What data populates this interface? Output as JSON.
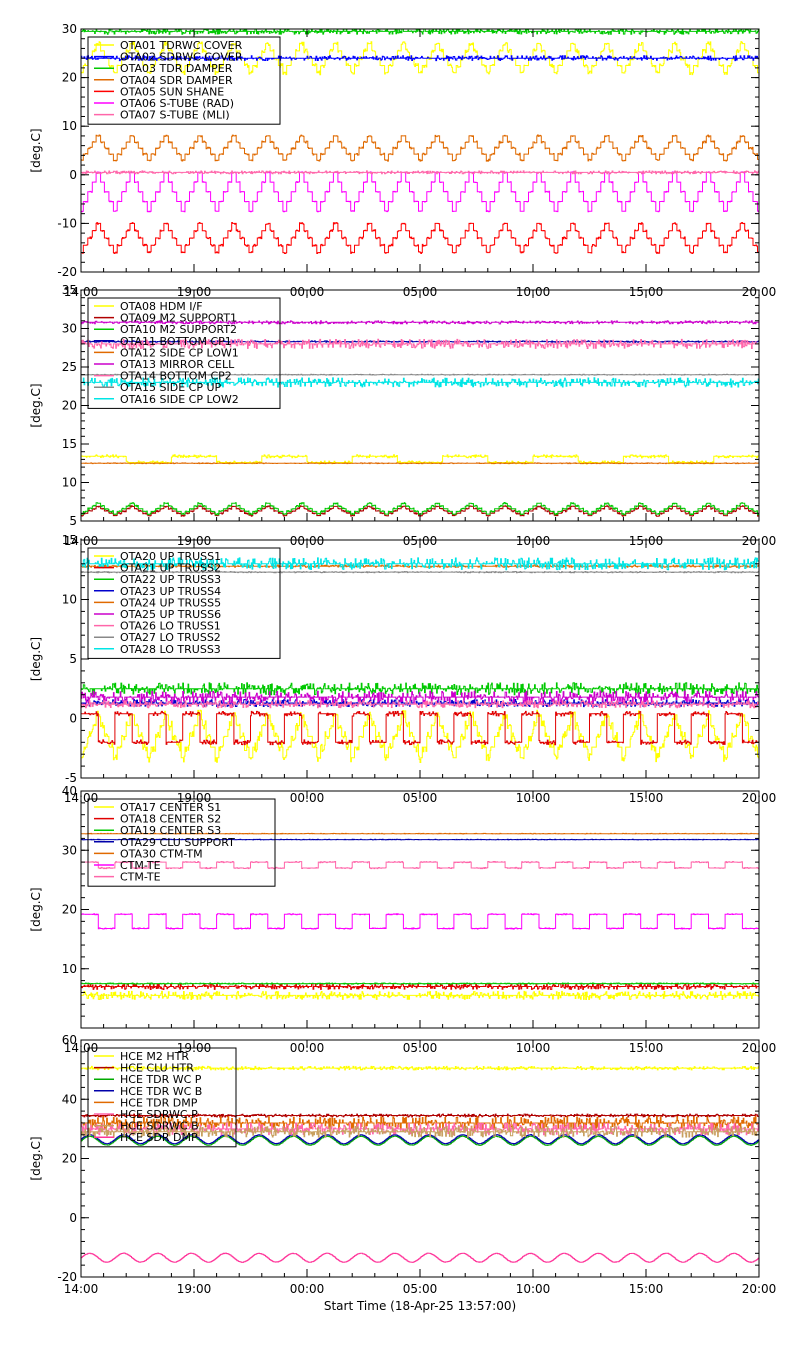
{
  "figure": {
    "x_tick_labels": [
      "14:00",
      "19:00",
      "00:00",
      "05:00",
      "10:00",
      "15:00",
      "20:00"
    ],
    "x_axis_label": "Start Time (18-Apr-25 13:57:00)"
  },
  "chart_data": [
    {
      "type": "line",
      "ylabel": "[deg.C]",
      "ylim": [
        -20,
        30
      ],
      "y_ticks": [
        -20,
        -10,
        0,
        10,
        20,
        30
      ],
      "xlim_hours": [
        0,
        30
      ],
      "legend_position": "top-left",
      "series": [
        {
          "name": "OTA01 TDRWC COVER",
          "color": "#ffff00",
          "kind": "sawtooth",
          "base": 24,
          "amp": 3,
          "period": 1.5,
          "noise": 0.4
        },
        {
          "name": "OTA02 SDRWC COVER",
          "color": "#0000ff",
          "kind": "const",
          "base": 24,
          "noise": 0.5
        },
        {
          "name": "OTA03 TDR DAMPER",
          "color": "#00c800",
          "kind": "const",
          "base": 29.5,
          "noise": 0.6
        },
        {
          "name": "OTA04 SDR DAMPER",
          "color": "#e06a00",
          "kind": "sawtooth",
          "base": 5.5,
          "amp": 2.5,
          "period": 1.5,
          "noise": 0.2
        },
        {
          "name": "OTA05 SUN SHANE",
          "color": "#ff0000",
          "kind": "sawtooth",
          "base": -13,
          "amp": 3,
          "period": 1.5,
          "noise": 0.2
        },
        {
          "name": "OTA06 S-TUBE (RAD)",
          "color": "#ff00ff",
          "kind": "sawtooth",
          "base": -3.5,
          "amp": 4,
          "period": 1.5,
          "noise": 0.1
        },
        {
          "name": "OTA07 S-TUBE (MLI)",
          "color": "#ff66aa",
          "kind": "const",
          "base": 0.5,
          "noise": 0.3
        }
      ]
    },
    {
      "type": "line",
      "ylabel": "[deg.C]",
      "ylim": [
        5,
        35
      ],
      "y_ticks": [
        5,
        10,
        15,
        20,
        25,
        30,
        35
      ],
      "xlim_hours": [
        0,
        30
      ],
      "legend_position": "top-left",
      "series": [
        {
          "name": "OTA08 HDM I/F",
          "color": "#ffff00",
          "kind": "step",
          "base": 13,
          "amp": 0.4,
          "period": 4,
          "noise": 0.2
        },
        {
          "name": "OTA09 M2 SUPPORT1",
          "color": "#b00000",
          "kind": "sawtooth",
          "base": 6.3,
          "amp": 0.6,
          "period": 1.5,
          "noise": 0.1
        },
        {
          "name": "OTA10 M2 SUPPORT2",
          "color": "#00c800",
          "kind": "sawtooth",
          "base": 6.6,
          "amp": 0.7,
          "period": 1.5,
          "noise": 0.1
        },
        {
          "name": "OTA11 BOTTOM CP1",
          "color": "#0000aa",
          "kind": "const",
          "base": 28.3,
          "noise": 0.1
        },
        {
          "name": "OTA12 SIDE CP LOW1",
          "color": "#e06a00",
          "kind": "const",
          "base": 12.5,
          "noise": 0.05
        },
        {
          "name": "OTA13 MIRROR CELL",
          "color": "#cc00cc",
          "kind": "const",
          "base": 30.8,
          "noise": 0.2
        },
        {
          "name": "OTA14 BOTTOM CP2",
          "color": "#ff66aa",
          "kind": "const",
          "base": 28,
          "noise": 0.6
        },
        {
          "name": "OTA15 SIDE CP UP",
          "color": "#888888",
          "kind": "const",
          "base": 24,
          "noise": 0.05
        },
        {
          "name": "OTA16 SIDE CP LOW2",
          "color": "#00e5e5",
          "kind": "const",
          "base": 23,
          "noise": 0.6
        }
      ]
    },
    {
      "type": "line",
      "ylabel": "[deg.C]",
      "ylim": [
        -5,
        15
      ],
      "y_ticks": [
        -5,
        0,
        5,
        10,
        15
      ],
      "xlim_hours": [
        0,
        30
      ],
      "legend_position": "top-left",
      "series": [
        {
          "name": "OTA20 UP TRUSS1",
          "color": "#ffff00",
          "kind": "sawtooth",
          "base": -1.5,
          "amp": 1.8,
          "period": 1.5,
          "noise": 0.4
        },
        {
          "name": "OTA21 UP TRUSS2",
          "color": "#e00000",
          "kind": "step",
          "base": -0.8,
          "amp": 1.2,
          "period": 1.5,
          "noise": 0.2
        },
        {
          "name": "OTA22 UP TRUSS3",
          "color": "#00c800",
          "kind": "const",
          "base": 2.5,
          "noise": 0.5
        },
        {
          "name": "OTA23 UP TRUSS4",
          "color": "#0000cc",
          "kind": "const",
          "base": 1.3,
          "noise": 0.3
        },
        {
          "name": "OTA24 UP TRUSS5",
          "color": "#e06a00",
          "kind": "const",
          "base": 12.8,
          "noise": 0.1
        },
        {
          "name": "OTA25 UP TRUSS6",
          "color": "#cc00cc",
          "kind": "const",
          "base": 1.8,
          "noise": 0.5
        },
        {
          "name": "OTA26 LO TRUSS1",
          "color": "#ff66aa",
          "kind": "const",
          "base": 1.2,
          "noise": 0.3
        },
        {
          "name": "OTA27 LO TRUSS2",
          "color": "#888888",
          "kind": "const",
          "base": 12.3,
          "noise": 0.05
        },
        {
          "name": "OTA28 LO TRUSS3",
          "color": "#00e5e5",
          "kind": "const",
          "base": 13,
          "noise": 0.5
        }
      ]
    },
    {
      "type": "line",
      "ylabel": "[deg.C]",
      "ylim": [
        0,
        40
      ],
      "y_ticks": [
        10,
        20,
        30,
        40
      ],
      "xlim_hours": [
        0,
        30
      ],
      "legend_position": "top-left",
      "series": [
        {
          "name": "OTA17 CENTER S1",
          "color": "#ffff00",
          "kind": "const",
          "base": 5.5,
          "noise": 0.7
        },
        {
          "name": "OTA18 CENTER S2",
          "color": "#e00000",
          "kind": "const",
          "base": 7,
          "noise": 0.5
        },
        {
          "name": "OTA19 CENTER S3",
          "color": "#00c800",
          "kind": "const",
          "base": 7.5,
          "noise": 0.1
        },
        {
          "name": "OTA29 CLU SUPPORT",
          "color": "#0000aa",
          "kind": "const",
          "base": 31.8,
          "noise": 0.05
        },
        {
          "name": "OTA30 CTM-TM",
          "color": "#e06a00",
          "kind": "const",
          "base": 32.8,
          "noise": 0.05
        },
        {
          "name": "CTM-TE",
          "color": "#ff00ff",
          "kind": "step",
          "base": 18,
          "amp": 1.2,
          "period": 1.5,
          "noise": 0.1
        },
        {
          "name": "CTM-TE",
          "color": "#ff66aa",
          "kind": "step",
          "base": 27.5,
          "amp": 0.5,
          "period": 1.5,
          "noise": 0.1
        }
      ]
    },
    {
      "type": "line",
      "ylabel": "[deg.C]",
      "ylim": [
        -20,
        60
      ],
      "y_ticks": [
        -20,
        0,
        20,
        40,
        60
      ],
      "xlim_hours": [
        0,
        30
      ],
      "legend_position": "top-left",
      "series": [
        {
          "name": "HCE M2 HTR",
          "color": "#ffff00",
          "kind": "const",
          "base": 50.5,
          "noise": 0.6
        },
        {
          "name": "HCE CLU HTR",
          "color": "#b00000",
          "kind": "const",
          "base": 34.5,
          "noise": 0.5
        },
        {
          "name": "HCE TDR WC P",
          "color": "#00aa00",
          "kind": "sine",
          "base": 26,
          "amp": 1.5,
          "period": 1.5,
          "noise": 0.1
        },
        {
          "name": "HCE TDR WC B",
          "color": "#0000aa",
          "kind": "sine",
          "base": 26.5,
          "amp": 1.5,
          "period": 1.5,
          "noise": 0.1
        },
        {
          "name": "HCE TDR DMP",
          "color": "#e06a00",
          "kind": "const",
          "base": 32,
          "noise": 2.2
        },
        {
          "name": "HCE SDRWC P",
          "color": "#ff66aa",
          "kind": "const",
          "base": 30,
          "noise": 2.0
        },
        {
          "name": "HCE SDRWC B",
          "color": "#c8a060",
          "kind": "const",
          "base": 29,
          "noise": 1.8
        },
        {
          "name": "HCE SDR DMP",
          "color": "#ff3399",
          "kind": "sine",
          "base": -13.5,
          "amp": 1.5,
          "period": 1.5,
          "noise": 0.1
        }
      ]
    }
  ]
}
